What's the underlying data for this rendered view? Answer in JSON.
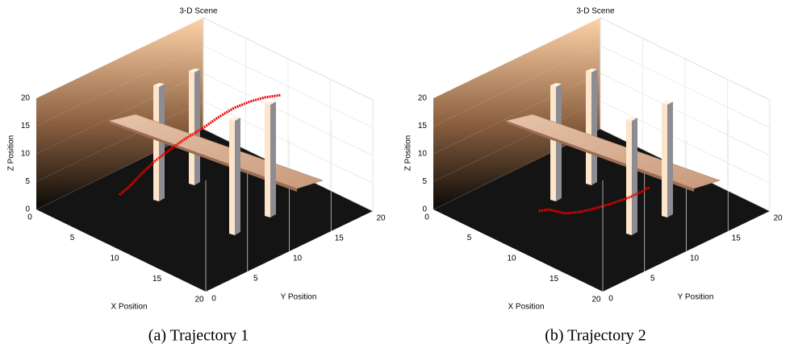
{
  "panels": [
    {
      "title": "3-D Scene",
      "x_label": "X Position",
      "y_label": "Y Position",
      "z_label": "Z Position",
      "xlim": [
        0,
        20
      ],
      "ylim": [
        0,
        20
      ],
      "zlim": [
        0,
        20
      ],
      "xticks": [
        0,
        5,
        10,
        15,
        20
      ],
      "yticks": [
        0,
        5,
        10,
        15,
        20
      ],
      "zticks": [
        0,
        5,
        10,
        15,
        20
      ],
      "caption": "(a) Trajectory 1"
    },
    {
      "title": "3-D Scene",
      "x_label": "X Position",
      "y_label": "Y Position",
      "z_label": "Z Position",
      "xlim": [
        0,
        20
      ],
      "ylim": [
        0,
        20
      ],
      "zlim": [
        0,
        20
      ],
      "xticks": [
        0,
        5,
        10,
        15,
        20
      ],
      "yticks": [
        0,
        5,
        10,
        15,
        20
      ],
      "zticks": [
        0,
        5,
        10,
        15,
        20
      ],
      "caption": "(b) Trajectory 2"
    }
  ]
}
